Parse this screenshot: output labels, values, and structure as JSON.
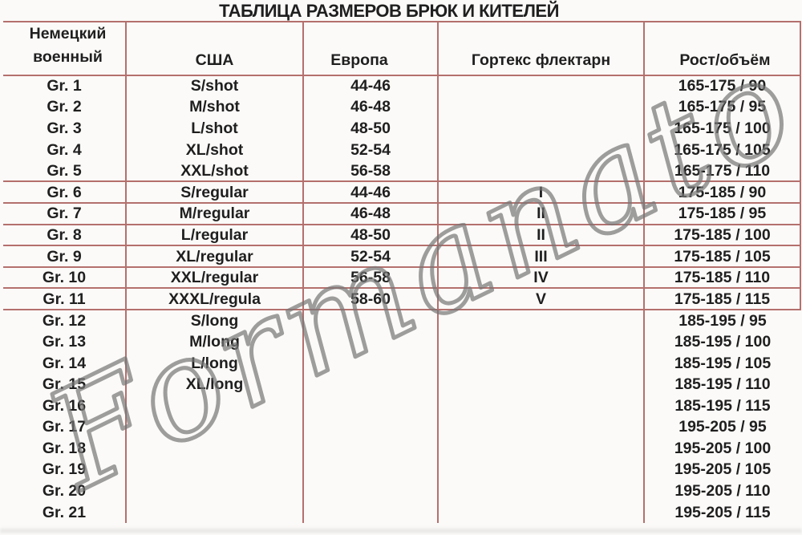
{
  "title": "ТАБЛИЦА РАЗМЕРОВ БРЮК И КИТЕЛЕЙ",
  "watermark": {
    "text": "Formanato"
  },
  "colors": {
    "border": "#b4706d",
    "text": "#1f1f1f",
    "watermark": "#767676",
    "background": "#fbfaf8"
  },
  "table": {
    "headers": {
      "german_line1": "Немецкий",
      "german_line2": "военный",
      "usa": "США",
      "europe": "Европа",
      "gortex": "Гортекс флектарн",
      "height_volume": "Рост/объём"
    },
    "rows": [
      {
        "gr": "Gr. 1",
        "usa": "S/shot",
        "europe": "44-46",
        "gortex": "",
        "height_volume": "165-175 / 90"
      },
      {
        "gr": "Gr. 2",
        "usa": "M/shot",
        "europe": "46-48",
        "gortex": "",
        "height_volume": "165-175 / 95"
      },
      {
        "gr": "Gr. 3",
        "usa": "L/shot",
        "europe": "48-50",
        "gortex": "",
        "height_volume": "165-175 / 100"
      },
      {
        "gr": "Gr. 4",
        "usa": "XL/shot",
        "europe": "52-54",
        "gortex": "",
        "height_volume": "165-175 / 105"
      },
      {
        "gr": "Gr. 5",
        "usa": "XXL/shot",
        "europe": "56-58",
        "gortex": "",
        "height_volume": "165-175 / 110"
      },
      {
        "gr": "Gr. 6",
        "usa": "S/regular",
        "europe": "44-46",
        "gortex": "I",
        "height_volume": "175-185 / 90"
      },
      {
        "gr": "Gr. 7",
        "usa": "M/regular",
        "europe": "46-48",
        "gortex": "II",
        "height_volume": "175-185 / 95"
      },
      {
        "gr": "Gr. 8",
        "usa": "L/regular",
        "europe": "48-50",
        "gortex": "II",
        "height_volume": "175-185 / 100"
      },
      {
        "gr": "Gr. 9",
        "usa": "XL/regular",
        "europe": "52-54",
        "gortex": "III",
        "height_volume": "175-185 / 105"
      },
      {
        "gr": "Gr. 10",
        "usa": "XXL/regular",
        "europe": "56-58",
        "gortex": "IV",
        "height_volume": "175-185 / 110"
      },
      {
        "gr": "Gr. 11",
        "usa": "XXXL/regula",
        "europe": "58-60",
        "gortex": "V",
        "height_volume": "175-185 / 115"
      },
      {
        "gr": "Gr. 12",
        "usa": "S/long",
        "europe": "",
        "gortex": "",
        "height_volume": "185-195 / 95"
      },
      {
        "gr": "Gr. 13",
        "usa": "M/long",
        "europe": "",
        "gortex": "",
        "height_volume": "185-195 / 100"
      },
      {
        "gr": "Gr. 14",
        "usa": "L/long",
        "europe": "",
        "gortex": "",
        "height_volume": "185-195 / 105"
      },
      {
        "gr": "Gr. 15",
        "usa": "XL/long",
        "europe": "",
        "gortex": "",
        "height_volume": "185-195 / 110"
      },
      {
        "gr": "Gr. 16",
        "usa": "",
        "europe": "",
        "gortex": "",
        "height_volume": "185-195 / 115"
      },
      {
        "gr": "Gr. 17",
        "usa": "",
        "europe": "",
        "gortex": "",
        "height_volume": "195-205 / 95"
      },
      {
        "gr": "Gr. 18",
        "usa": "",
        "europe": "",
        "gortex": "",
        "height_volume": "195-205 / 100"
      },
      {
        "gr": "Gr. 19",
        "usa": "",
        "europe": "",
        "gortex": "",
        "height_volume": "195-205 / 105"
      },
      {
        "gr": "Gr. 20",
        "usa": "",
        "europe": "",
        "gortex": "",
        "height_volume": "195-205 / 110"
      },
      {
        "gr": "Gr. 21",
        "usa": "",
        "europe": "",
        "gortex": "",
        "height_volume": "195-205 / 115"
      }
    ]
  }
}
